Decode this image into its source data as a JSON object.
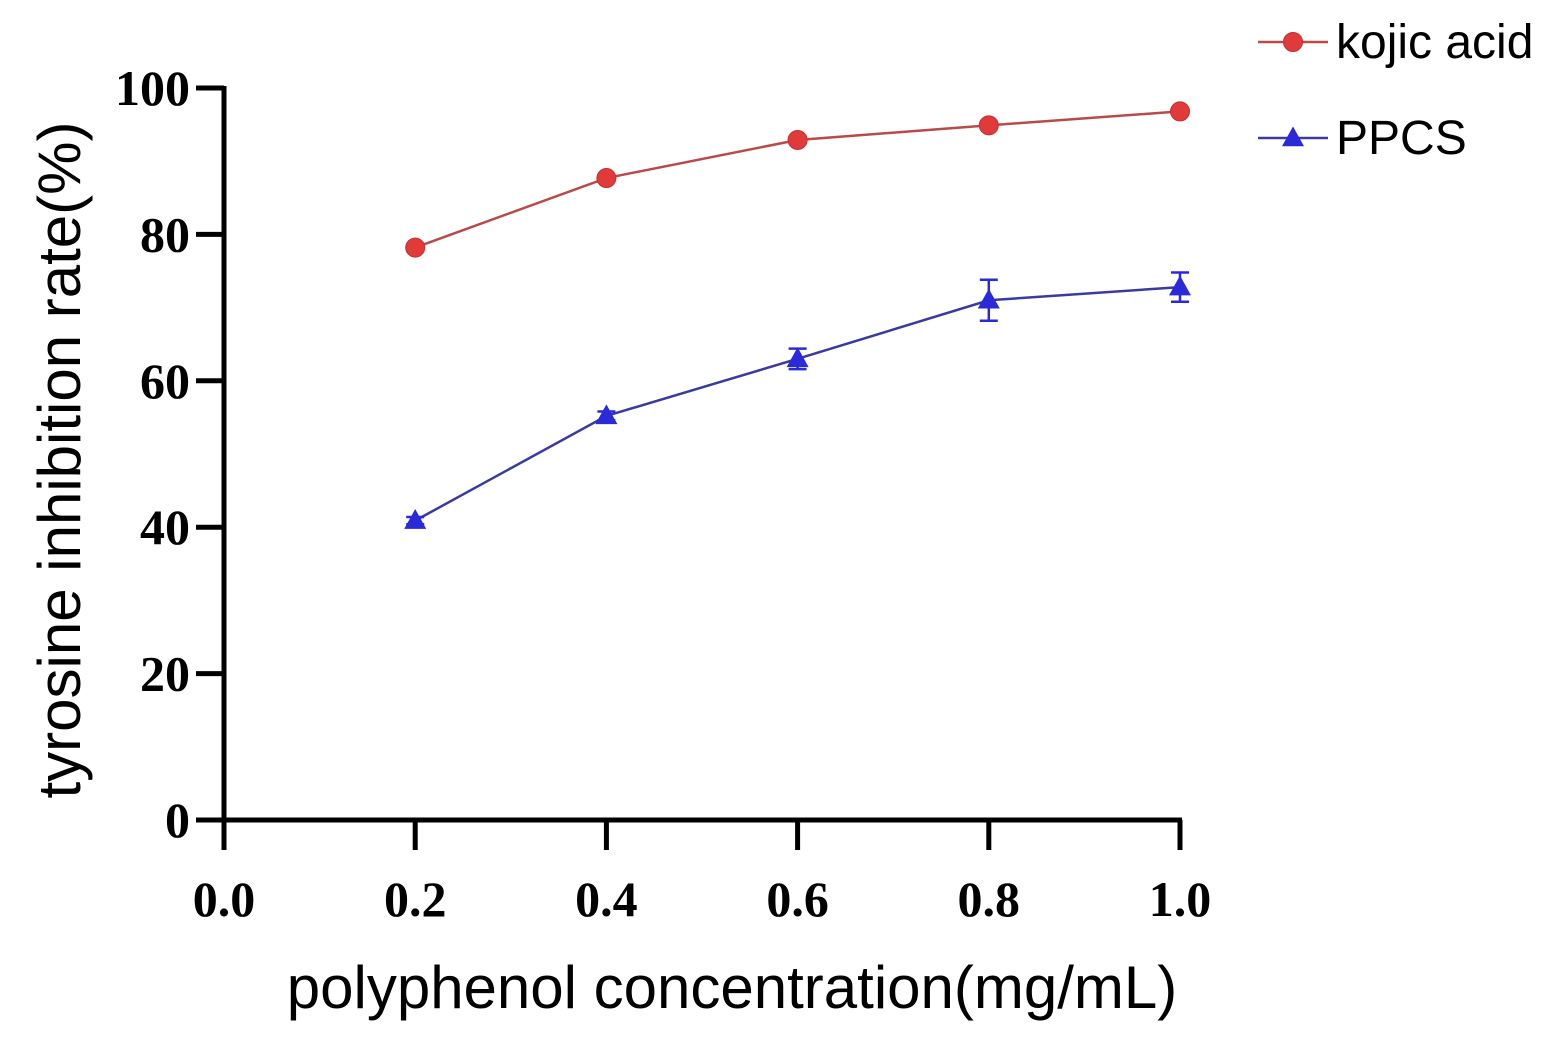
{
  "chart_data": {
    "type": "line",
    "title": "",
    "xlabel": "polyphenol concentration(mg/mL)",
    "ylabel": "tyrosine inhibition rate(%)",
    "xlim": [
      0.0,
      1.0
    ],
    "ylim": [
      0,
      100
    ],
    "xticks": [
      0.0,
      0.2,
      0.4,
      0.6,
      0.8,
      1.0
    ],
    "xtick_labels": [
      "0.0",
      "0.2",
      "0.4",
      "0.6",
      "0.8",
      "1.0"
    ],
    "yticks": [
      0,
      20,
      40,
      60,
      80,
      100
    ],
    "ytick_labels": [
      "0",
      "20",
      "40",
      "60",
      "80",
      "100"
    ],
    "grid": false,
    "legend_position": "top-right",
    "x": [
      0.2,
      0.4,
      0.6,
      0.8,
      1.0
    ],
    "series": [
      {
        "name": "kojic acid",
        "marker": "circle",
        "color": "#b84a4a",
        "marker_color": "#e03a3a",
        "values": [
          78.2,
          87.7,
          92.9,
          94.9,
          96.8
        ],
        "errors": [
          0.4,
          0.4,
          0.4,
          0.4,
          0.4
        ]
      },
      {
        "name": "PPCS",
        "marker": "triangle",
        "color": "#3a3aa0",
        "marker_color": "#2a2ad8",
        "values": [
          40.9,
          55.2,
          63.0,
          71.0,
          72.8
        ],
        "errors": [
          0.5,
          0.6,
          1.4,
          2.8,
          2.0
        ]
      }
    ]
  }
}
